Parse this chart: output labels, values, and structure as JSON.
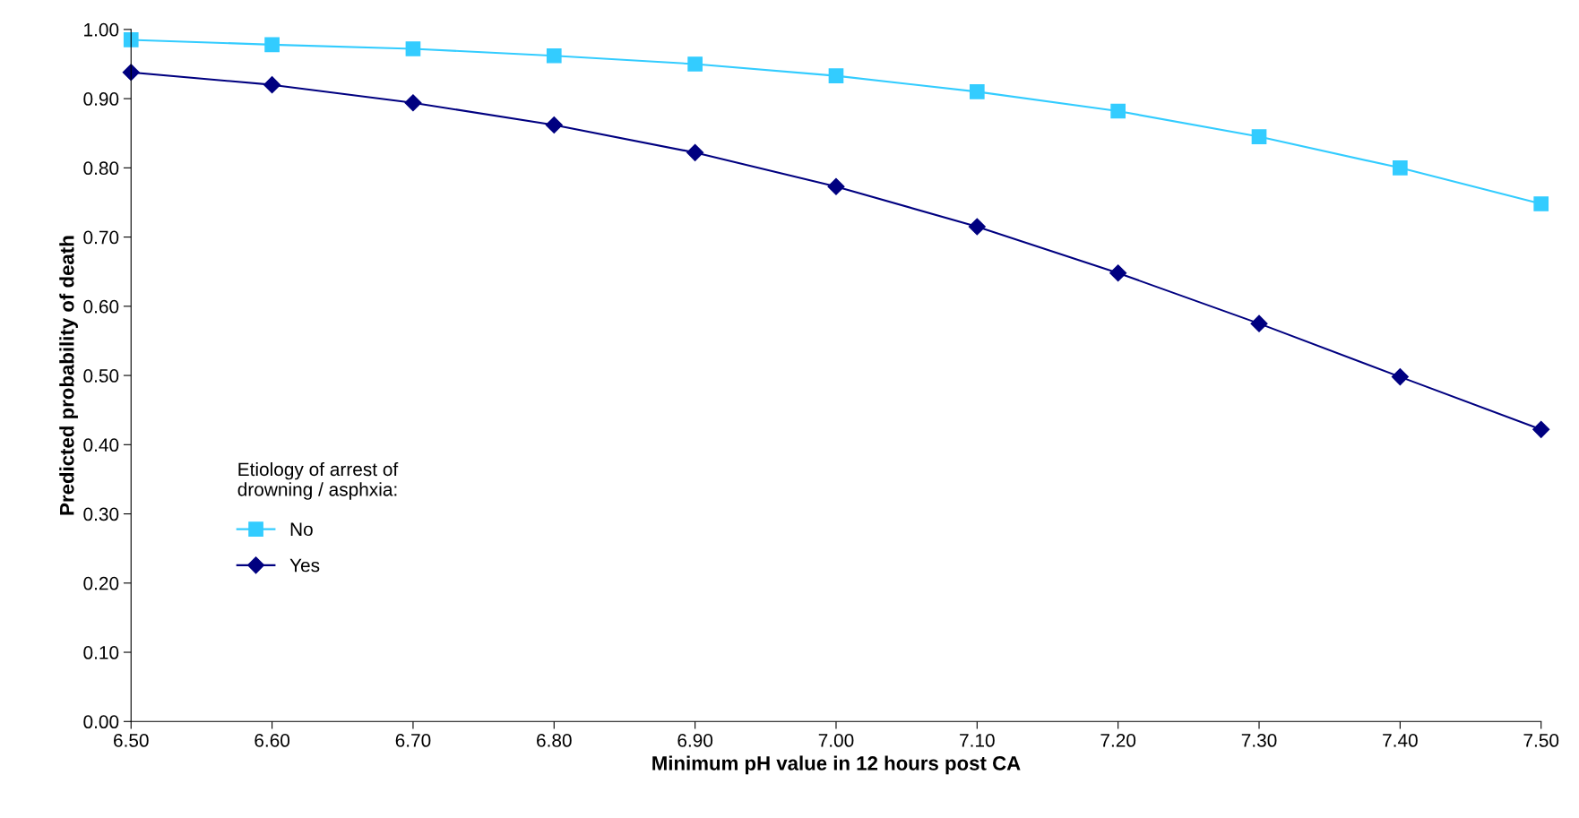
{
  "chart_data": {
    "type": "line",
    "xlabel": "Minimum pH value in 12 hours post CA",
    "ylabel": "Predicted probability of death",
    "legend_title": "Etiology of arrest of\ndrowning / asphxia:",
    "legend": "left",
    "line_style": "solid",
    "grid": false,
    "x": [
      6.5,
      6.6,
      6.7,
      6.8,
      6.9,
      7.0,
      7.1,
      7.2,
      7.3,
      7.4,
      7.5
    ],
    "series": [
      {
        "name": "No",
        "color": "#33ccff",
        "marker": "square",
        "values": [
          0.985,
          0.978,
          0.972,
          0.962,
          0.95,
          0.933,
          0.91,
          0.882,
          0.845,
          0.8,
          0.748
        ]
      },
      {
        "name": "Yes",
        "color": "#000080",
        "marker": "diamond",
        "values": [
          0.938,
          0.92,
          0.894,
          0.862,
          0.822,
          0.773,
          0.715,
          0.648,
          0.575,
          0.498,
          0.422
        ]
      }
    ],
    "xlim": [
      6.5,
      7.5
    ],
    "xticks": [
      {
        "value": 6.5,
        "label": "6.50"
      },
      {
        "value": 6.6,
        "label": "6.60"
      },
      {
        "value": 6.7,
        "label": "6.70"
      },
      {
        "value": 6.8,
        "label": "6.80"
      },
      {
        "value": 6.9,
        "label": "6.90"
      },
      {
        "value": 7.0,
        "label": "7.00"
      },
      {
        "value": 7.1,
        "label": "7.10"
      },
      {
        "value": 7.2,
        "label": "7.20"
      },
      {
        "value": 7.3,
        "label": "7.30"
      },
      {
        "value": 7.4,
        "label": "7.40"
      },
      {
        "value": 7.5,
        "label": "7.50"
      }
    ],
    "ylim": [
      0,
      1
    ],
    "yticks": [
      {
        "value": 0,
        "label": "0.00"
      },
      {
        "value": 0.1,
        "label": "0.10"
      },
      {
        "value": 0.2,
        "label": "0.20"
      },
      {
        "value": 0.3,
        "label": "0.30"
      },
      {
        "value": 0.4,
        "label": "0.40"
      },
      {
        "value": 0.5,
        "label": "0.50"
      },
      {
        "value": 0.6,
        "label": "0.60"
      },
      {
        "value": 0.7,
        "label": "0.70"
      },
      {
        "value": 0.8,
        "label": "0.80"
      },
      {
        "value": 0.9,
        "label": "0.90"
      },
      {
        "value": 1.0,
        "label": "1.00"
      }
    ]
  }
}
